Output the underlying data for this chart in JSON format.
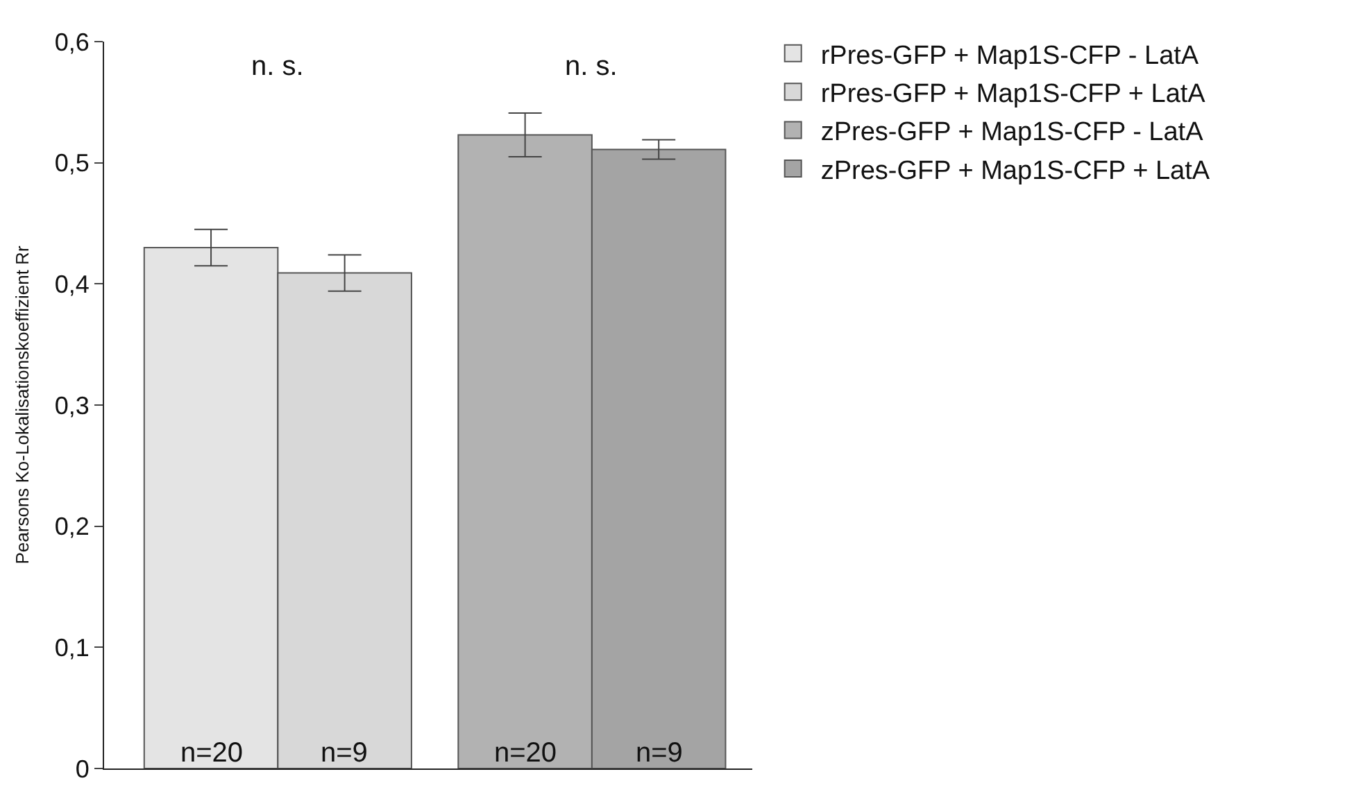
{
  "chart_data": {
    "type": "bar",
    "ylabel": "Pearsons Ko-Lokalisationskoeffizient Rr",
    "categories": [
      null,
      null,
      null,
      null
    ],
    "series": [
      {
        "name": "rPres-GFP + Map1S-CFP - LatA",
        "color": "#e4e4e4",
        "values": [
          0.43,
          null,
          null,
          null
        ],
        "errors": [
          0.015,
          null,
          null,
          null
        ]
      },
      {
        "name": "rPres-GFP + Map1S-CFP + LatA",
        "color": "#d8d8d8",
        "values": [
          null,
          0.409,
          null,
          null
        ],
        "errors": [
          null,
          0.015,
          null,
          null
        ]
      },
      {
        "name": "zPres-GFP + Map1S-CFP - LatA",
        "color": "#b2b2b2",
        "values": [
          null,
          null,
          0.523,
          null
        ],
        "errors": [
          null,
          null,
          0.018,
          null
        ]
      },
      {
        "name": "zPres-GFP + Map1S-CFP + LatA",
        "color": "#a4a4a4",
        "values": [
          null,
          null,
          null,
          0.511
        ],
        "errors": [
          null,
          null,
          null,
          0.008
        ]
      }
    ],
    "ylim": [
      0,
      0.6
    ],
    "yticks": [
      0,
      {
        "value": 0.1,
        "label": "0,1"
      },
      {
        "value": 0.2,
        "label": "0,2"
      },
      {
        "value": 0.3,
        "label": "0,3"
      },
      {
        "value": 0.4,
        "label": "0,4"
      },
      {
        "value": 0.5,
        "label": "0,5"
      },
      {
        "value": 0.6,
        "label": "0,6"
      }
    ],
    "annotations": [
      "n. s.",
      "n. s.",
      "n=20",
      "n=9",
      "n=20",
      "n=9"
    ],
    "legend": "top right"
  }
}
